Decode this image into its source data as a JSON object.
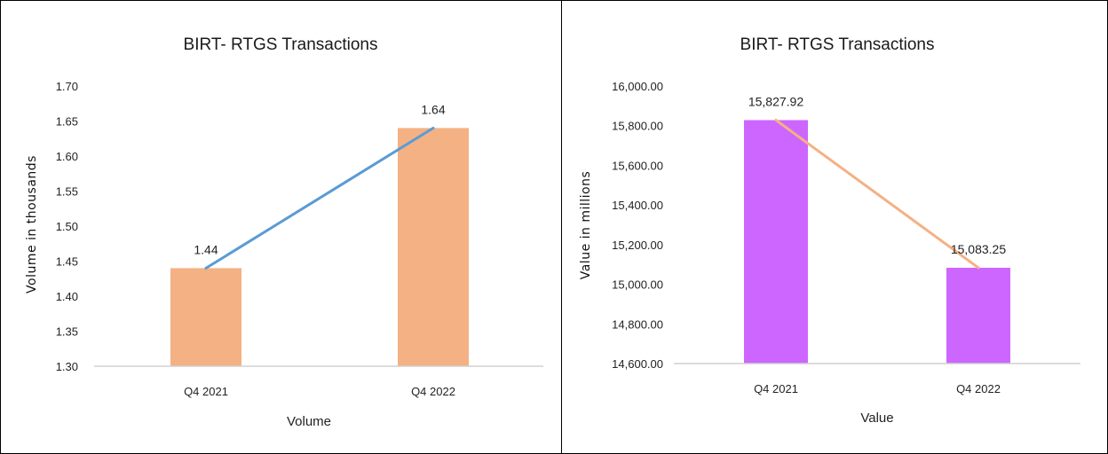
{
  "chart_data": [
    {
      "type": "bar",
      "title": "BIRT- RTGS Transactions",
      "xlabel": "Volume",
      "ylabel": "Volume in thousands",
      "categories": [
        "Q4 2021",
        "Q4 2022"
      ],
      "values": [
        1.44,
        1.64
      ],
      "data_labels": [
        "1.44",
        "1.64"
      ],
      "overlay_line": true,
      "ylim": [
        1.3,
        1.7
      ],
      "yticks": [
        1.3,
        1.35,
        1.4,
        1.45,
        1.5,
        1.55,
        1.6,
        1.65,
        1.7
      ],
      "ytick_labels": [
        "1.30",
        "1.35",
        "1.40",
        "1.45",
        "1.50",
        "1.55",
        "1.60",
        "1.65",
        "1.70"
      ],
      "grid": false,
      "legend": "none",
      "bar_color": "#F4B183",
      "line_color": "#5B9BD5"
    },
    {
      "type": "bar",
      "title": "BIRT- RTGS Transactions",
      "xlabel": "Value",
      "ylabel": "Value in millions",
      "categories": [
        "Q4 2021",
        "Q4 2022"
      ],
      "values": [
        15827.92,
        15083.25
      ],
      "data_labels": [
        "15,827.92",
        "15,083.25"
      ],
      "overlay_line": true,
      "ylim": [
        14600,
        16000
      ],
      "yticks": [
        14600,
        14800,
        15000,
        15200,
        15400,
        15600,
        15800,
        16000
      ],
      "ytick_labels": [
        "14,600.00",
        "14,800.00",
        "15,000.00",
        "15,200.00",
        "15,400.00",
        "15,600.00",
        "15,800.00",
        "16,000.00"
      ],
      "grid": false,
      "legend": "none",
      "bar_color": "#CC66FF",
      "line_color": "#F4B183"
    }
  ]
}
